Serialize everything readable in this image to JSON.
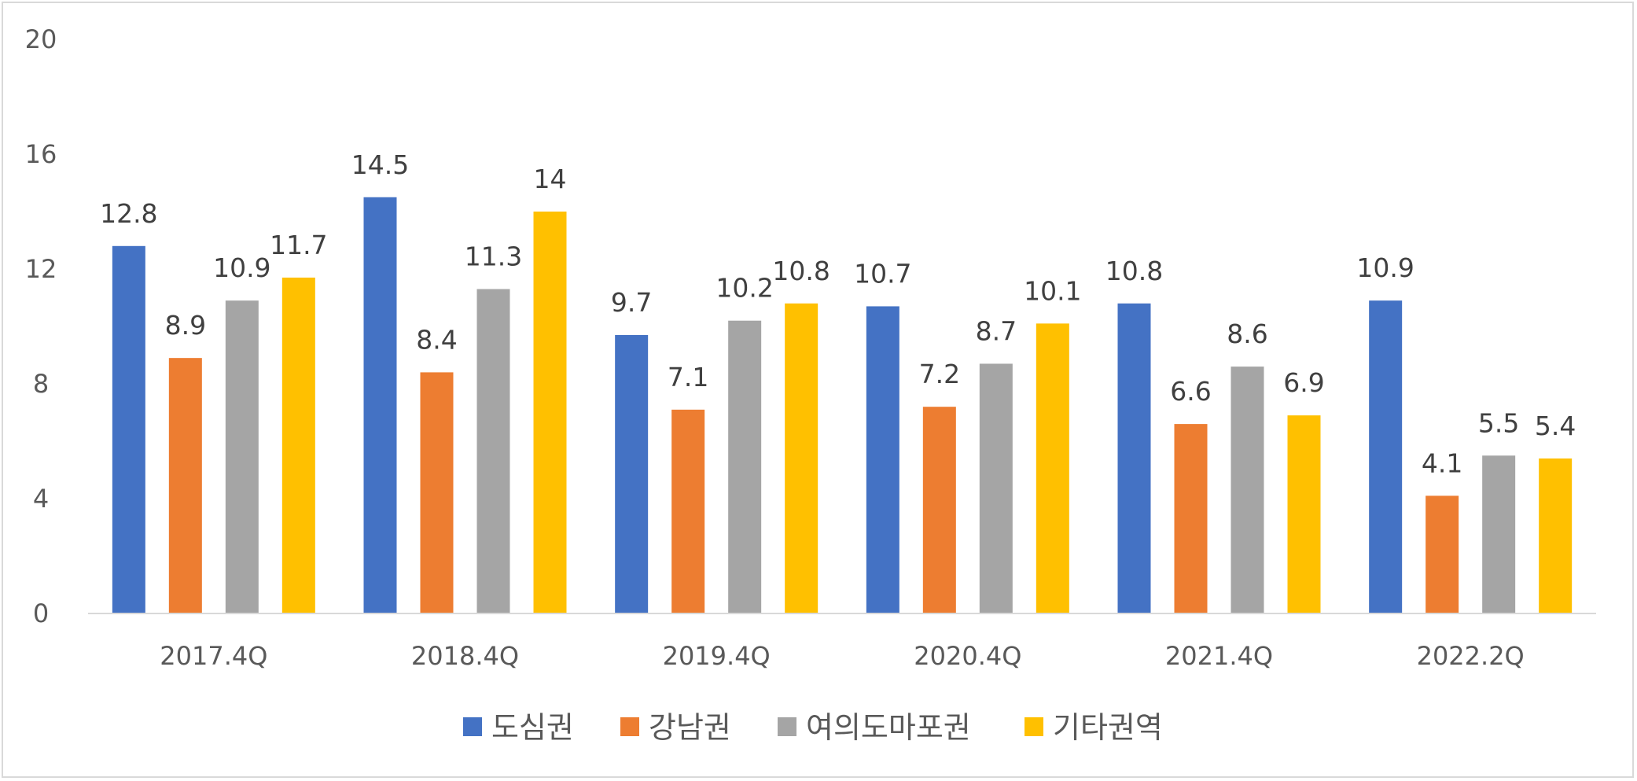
{
  "chart_data": {
    "type": "bar",
    "categories": [
      "2017.4Q",
      "2018.4Q",
      "2019.4Q",
      "2020.4Q",
      "2021.4Q",
      "2022.2Q"
    ],
    "series": [
      {
        "name": "도심권",
        "color": "#4472C4",
        "values": [
          12.8,
          14.5,
          9.7,
          10.7,
          10.8,
          10.9
        ],
        "labels": [
          "12.8",
          "14.5",
          "9.7",
          "10.7",
          "10.8",
          "10.9"
        ]
      },
      {
        "name": "강남권",
        "color": "#ED7D31",
        "values": [
          8.9,
          8.4,
          7.1,
          7.2,
          6.6,
          4.1
        ],
        "labels": [
          "8.9",
          "8.4",
          "7.1",
          "7.2",
          "6.6",
          "4.1"
        ]
      },
      {
        "name": "여의도마포권",
        "color": "#A5A5A5",
        "values": [
          10.9,
          11.3,
          10.2,
          8.7,
          8.6,
          5.5
        ],
        "labels": [
          "10.9",
          "11.3",
          "10.2",
          "8.7",
          "8.6",
          "5.5"
        ]
      },
      {
        "name": "기타권역",
        "color": "#FFC000",
        "values": [
          11.7,
          14,
          10.8,
          10.1,
          6.9,
          5.4
        ],
        "labels": [
          "11.7",
          "14",
          "10.8",
          "10.1",
          "6.9",
          "5.4"
        ]
      }
    ],
    "yticks": [
      "0",
      "4",
      "8",
      "12",
      "16",
      "20"
    ],
    "ylim": [
      0,
      20
    ],
    "grid": false,
    "legend_position": "bottom"
  }
}
